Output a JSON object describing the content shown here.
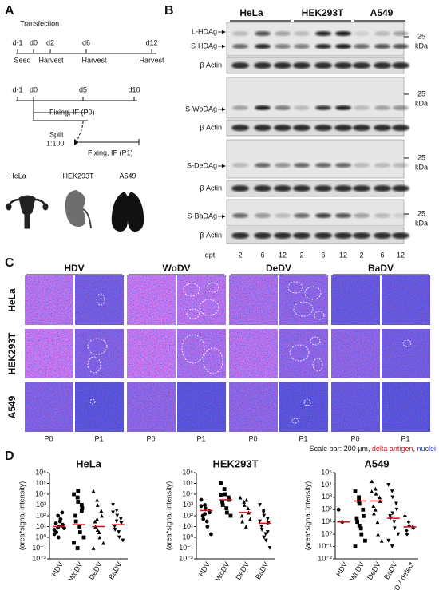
{
  "panel_a": {
    "label": "A",
    "timeline_1": {
      "title": "Transfection",
      "days": [
        "d-1",
        "d0",
        "d2",
        "d6",
        "d12"
      ],
      "events": [
        "Seed",
        "Harvest",
        "Harvest",
        "Harvest"
      ]
    },
    "timeline_2": {
      "days": [
        "d-1",
        "d0",
        "d5",
        "d10"
      ],
      "fix_p0": "Fixing, IF (P0)",
      "split": [
        "Split",
        "1:100"
      ],
      "fix_p1": "Fixing, IF (P1)"
    },
    "cell_lines": [
      "HeLa",
      "HEK293T",
      "A549"
    ]
  },
  "panel_b": {
    "label": "B",
    "cell_lines": [
      "HeLa",
      "HEK293T",
      "A549"
    ],
    "blots": [
      {
        "labels": [
          "L-HDAg",
          "S-HDAg"
        ],
        "loading": "β Actin",
        "marker": [
          "25",
          "kDa"
        ]
      },
      {
        "labels": [
          "S-WoDAg"
        ],
        "loading": "β Actin",
        "marker": [
          "25",
          "kDa"
        ]
      },
      {
        "labels": [
          "S-DeDAg"
        ],
        "loading": "β Actin",
        "marker": [
          "25",
          "kDa"
        ]
      },
      {
        "labels": [
          "S-BaDAg"
        ],
        "loading": "β Actin",
        "marker": [
          "25",
          "kDa"
        ]
      }
    ],
    "time_label": "dpt",
    "timepoints": [
      "2",
      "6",
      "12",
      "2",
      "6",
      "12",
      "2",
      "6",
      "12"
    ]
  },
  "panel_c": {
    "label": "C",
    "viruses": [
      "HDV",
      "WoDV",
      "DeDV",
      "BaDV"
    ],
    "cell_lines": [
      "HeLa",
      "HEK293T",
      "A549"
    ],
    "passages": [
      "P0",
      "P1",
      "P0",
      "P1",
      "P0",
      "P1",
      "P0",
      "P1"
    ],
    "scale_note": {
      "text": "Scale bar: 200 µm,",
      "antigen": "delta antigen",
      "separator": ",",
      "nuclei": "nuclei"
    }
  },
  "panel_d": {
    "label": "D"
  },
  "chart_data": [
    {
      "type": "scatter",
      "title": "HeLa",
      "y_label": "(area*signal intensity)",
      "log_scale": true,
      "categories": [
        "HDV",
        "WoDV",
        "DeDV",
        "BaDV"
      ],
      "markers": [
        "circle",
        "square",
        "triangle",
        "triangle-down"
      ],
      "ylim": [
        0.01,
        1000000
      ],
      "yticks": [
        {
          "value": 0.01,
          "label": "10⁻²"
        },
        {
          "value": 0.1,
          "label": "10⁻¹"
        },
        {
          "value": 1,
          "label": "10⁰"
        },
        {
          "value": 10,
          "label": "10¹"
        },
        {
          "value": 100,
          "label": "10²"
        },
        {
          "value": 1000,
          "label": "10³"
        },
        {
          "value": 10000,
          "label": "10⁴"
        },
        {
          "value": 100000,
          "label": "10⁵"
        },
        {
          "value": 1000000,
          "label": "10⁶"
        }
      ],
      "points": [
        [
          5,
          8,
          10,
          12,
          15,
          20,
          3,
          30,
          50,
          7,
          2,
          100,
          1,
          200
        ],
        [
          10000,
          5000,
          2000,
          1000,
          500,
          100,
          30,
          10,
          3,
          1,
          0.3,
          0.1,
          20000,
          300
        ],
        [
          20000,
          3000,
          1000,
          300,
          100,
          30,
          10,
          3,
          1,
          0.3,
          0.1,
          50,
          5
        ],
        [
          1000,
          300,
          100,
          50,
          20,
          10,
          5,
          3,
          1,
          0.5,
          200,
          30
        ]
      ],
      "medians": [
        10,
        15,
        10,
        15
      ],
      "median_color": "#e8000b",
      "point_color": "#000000"
    },
    {
      "type": "scatter",
      "title": "HEK293T",
      "y_label": "(area*signal intensity)",
      "log_scale": true,
      "categories": [
        "HDV",
        "WoDV",
        "DeDV",
        "BaDV"
      ],
      "markers": [
        "circle",
        "square",
        "triangle",
        "triangle-down"
      ],
      "ylim": [
        0.01,
        1000000
      ],
      "yticks": [
        {
          "value": 0.01,
          "label": "10⁻²"
        },
        {
          "value": 0.1,
          "label": "10⁻¹"
        },
        {
          "value": 1,
          "label": "10⁰"
        },
        {
          "value": 10,
          "label": "10¹"
        },
        {
          "value": 100,
          "label": "10²"
        },
        {
          "value": 1000,
          "label": "10³"
        },
        {
          "value": 10000,
          "label": "10⁴"
        },
        {
          "value": 100000,
          "label": "10⁵"
        },
        {
          "value": 1000000,
          "label": "10⁶"
        }
      ],
      "points": [
        [
          3000,
          1000,
          500,
          300,
          200,
          100,
          50,
          30,
          10,
          2,
          800,
          150
        ],
        [
          100000,
          30000,
          10000,
          5000,
          3000,
          2000,
          1000,
          500,
          200,
          100,
          8000
        ],
        [
          5000,
          2000,
          1000,
          500,
          200,
          100,
          30,
          10,
          3000,
          50
        ],
        [
          1000,
          300,
          100,
          50,
          20,
          10,
          5,
          2,
          0.5,
          0.1,
          30,
          200,
          1,
          3
        ]
      ],
      "medians": [
        300,
        3000,
        200,
        20
      ],
      "median_color": "#e8000b",
      "point_color": "#000000"
    },
    {
      "type": "scatter",
      "title": "A549",
      "y_label": "(area*signal intensity)",
      "log_scale": true,
      "categories": [
        "HDV",
        "WoDV",
        "DeDV",
        "BaDV",
        "HDV defect"
      ],
      "markers": [
        "circle",
        "square",
        "triangle",
        "triangle-down",
        "diamond"
      ],
      "ylim": [
        0.01,
        100000
      ],
      "yticks": [
        {
          "value": 0.01,
          "label": "10⁻²"
        },
        {
          "value": 0.1,
          "label": "10⁻¹"
        },
        {
          "value": 1,
          "label": "10⁰"
        },
        {
          "value": 10,
          "label": "10¹"
        },
        {
          "value": 100,
          "label": "10²"
        },
        {
          "value": 1000,
          "label": "10³"
        },
        {
          "value": 10000,
          "label": "10⁴"
        },
        {
          "value": 100000,
          "label": "10⁵"
        }
      ],
      "points": [
        [
          100,
          10
        ],
        [
          3000,
          1000,
          300,
          100,
          30,
          20,
          10,
          3,
          1,
          0.3,
          0.1,
          500,
          5
        ],
        [
          20000,
          5000,
          2000,
          1000,
          500,
          200,
          50,
          10,
          1,
          0.3,
          3000,
          100
        ],
        [
          10000,
          3000,
          1000,
          300,
          100,
          30,
          20,
          10,
          3,
          1,
          0.3,
          0.1,
          50
        ],
        [
          30,
          10,
          5,
          4,
          3,
          2,
          1
        ]
      ],
      "medians": [
        10,
        500,
        500,
        20,
        4
      ],
      "median_color": "#e8000b",
      "point_color": "#000000"
    }
  ]
}
